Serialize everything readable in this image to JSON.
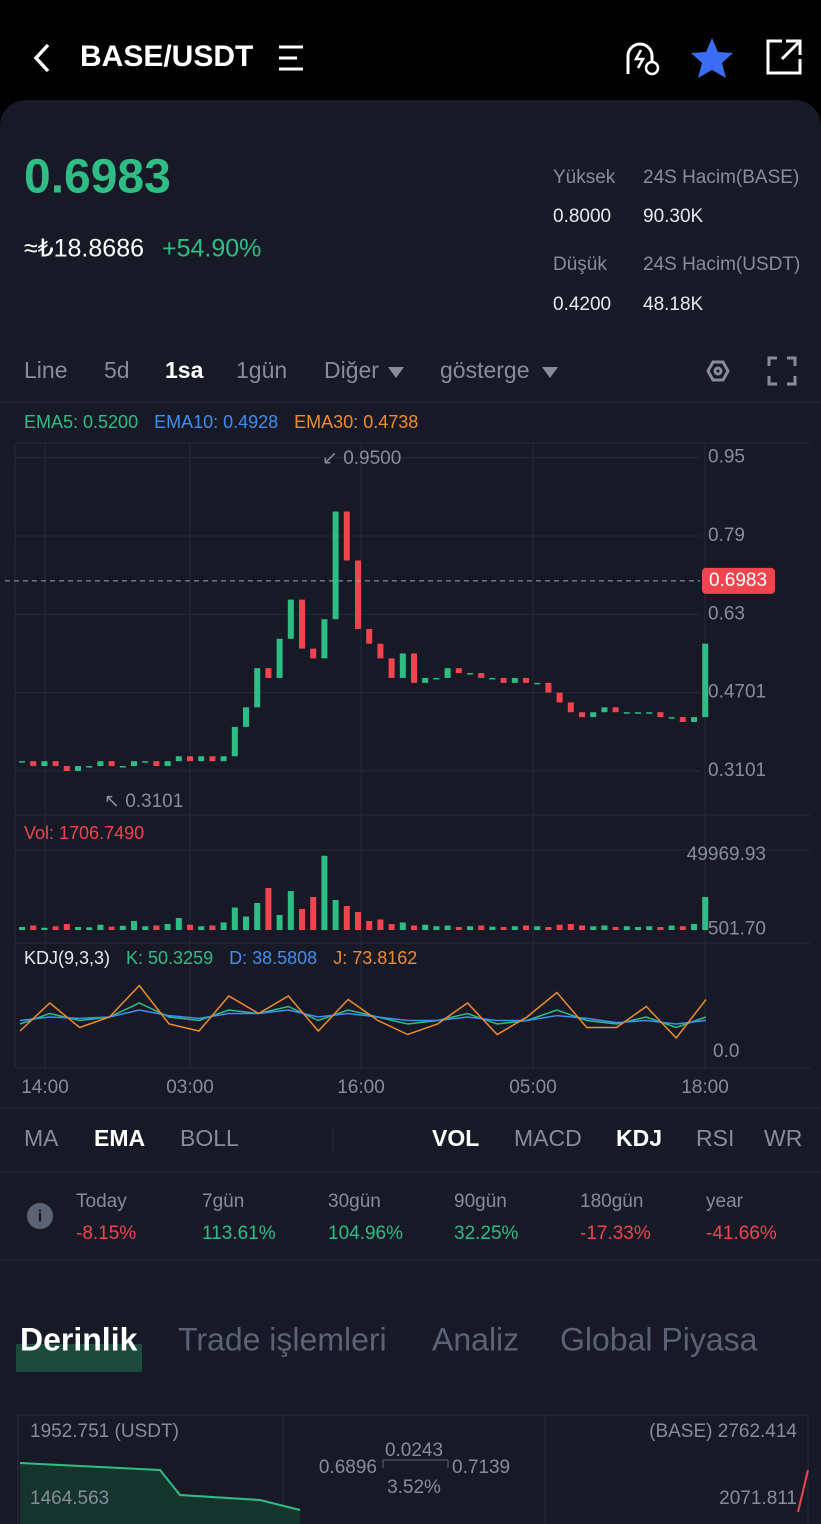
{
  "header": {
    "pair": "BASE/USDT"
  },
  "ticker": {
    "price": "0.6983",
    "fiat": "≈₺18.8686",
    "change": "+54.90%",
    "stats": [
      {
        "label": "Yüksek",
        "value": "0.8000"
      },
      {
        "label": "24S Hacim(BASE)",
        "value": "90.30K"
      },
      {
        "label": "Düşük",
        "value": "0.4200"
      },
      {
        "label": "24S Hacim(USDT)",
        "value": "48.18K"
      }
    ]
  },
  "intervals": [
    "Line",
    "5d",
    "1sa",
    "1gün",
    "Diğer",
    "gösterge"
  ],
  "chart_data": [
    {
      "type": "candlestick",
      "legend": [
        "EMA5: 0.5200",
        "EMA10: 0.4928",
        "EMA30: 0.4738"
      ],
      "legend_colors": [
        "#2ebd85",
        "#3d8ef0",
        "#f08a2c"
      ],
      "up_color": "#2ebd85",
      "down_color": "#f0444f",
      "open": 0.33,
      "closes": [
        0.33,
        0.32,
        0.33,
        0.32,
        0.31,
        0.32,
        0.32,
        0.33,
        0.32,
        0.32,
        0.33,
        0.33,
        0.32,
        0.33,
        0.34,
        0.33,
        0.34,
        0.33,
        0.34,
        0.4,
        0.44,
        0.52,
        0.5,
        0.58,
        0.66,
        0.56,
        0.54,
        0.62,
        0.84,
        0.74,
        0.6,
        0.57,
        0.54,
        0.5,
        0.55,
        0.49,
        0.5,
        0.5,
        0.52,
        0.51,
        0.51,
        0.5,
        0.5,
        0.49,
        0.5,
        0.49,
        0.49,
        0.47,
        0.45,
        0.43,
        0.42,
        0.43,
        0.44,
        0.43,
        0.43,
        0.43,
        0.43,
        0.42,
        0.42,
        0.41,
        0.42,
        0.57
      ],
      "ylim": [
        0.22,
        0.98
      ],
      "yticks": [
        0.95,
        0.79,
        0.63,
        0.4701,
        0.3101
      ],
      "last_price": 0.6983,
      "high_label": "↙ 0.9500",
      "low_label": "↖ 0.3101"
    },
    {
      "type": "bar",
      "legend": [
        "Vol: 1706.7490"
      ],
      "values": [
        2000,
        3000,
        1500,
        2500,
        4000,
        2000,
        1800,
        3500,
        2200,
        2800,
        6000,
        2500,
        3000,
        4000,
        8000,
        3500,
        2500,
        3000,
        5000,
        15000,
        9000,
        18000,
        28000,
        10000,
        26000,
        14000,
        22000,
        49500,
        20000,
        16000,
        12000,
        6000,
        7000,
        4000,
        5000,
        3000,
        3500,
        2500,
        3000,
        2000,
        2500,
        3000,
        2200,
        2000,
        2500,
        3000,
        2500,
        2000,
        3500,
        4000,
        3000,
        2500,
        3000,
        2000,
        2500,
        2000,
        2500,
        2000,
        3000,
        2500,
        4000,
        22000
      ],
      "ylim": [
        0,
        52000
      ],
      "yticks": [
        49969.93,
        {
          "value": 501.7,
          "label": "501.70"
        }
      ]
    },
    {
      "type": "line",
      "legend": [
        "KDJ(9,3,3)",
        "K: 50.3259",
        "D: 38.5808",
        "J: 73.8162"
      ],
      "legend_colors": [
        "#e6e8ee",
        "#2ebd85",
        "#3d8ef0",
        "#f08a2c"
      ],
      "series": [
        {
          "name": "K",
          "color": "#2ebd85",
          "values": [
            40,
            55,
            45,
            50,
            70,
            50,
            45,
            60,
            55,
            65,
            45,
            60,
            50,
            40,
            45,
            55,
            40,
            45,
            60,
            45,
            40,
            50,
            35,
            50
          ]
        },
        {
          "name": "D",
          "color": "#3d8ef0",
          "values": [
            45,
            50,
            48,
            50,
            60,
            52,
            48,
            55,
            55,
            60,
            50,
            55,
            50,
            45,
            45,
            50,
            45,
            45,
            52,
            48,
            42,
            45,
            40,
            45
          ]
        },
        {
          "name": "J",
          "color": "#f08a2c",
          "values": [
            30,
            70,
            35,
            50,
            95,
            40,
            30,
            80,
            55,
            80,
            30,
            75,
            45,
            25,
            40,
            70,
            25,
            50,
            85,
            35,
            35,
            65,
            20,
            75
          ]
        }
      ],
      "ylim": [
        0,
        100
      ],
      "yticks": [
        {
          "value": 0,
          "label": "0.0"
        }
      ]
    }
  ],
  "time_axis": [
    "14:00",
    "03:00",
    "16:00",
    "05:00",
    "18:00"
  ],
  "main_indicators": [
    "MA",
    "EMA",
    "BOLL"
  ],
  "sub_indicators": [
    "VOL",
    "MACD",
    "KDJ",
    "RSI",
    "WR"
  ],
  "performance": [
    {
      "label": "Today",
      "value": "-8.15%"
    },
    {
      "label": "7gün",
      "value": "113.61%"
    },
    {
      "label": "30gün",
      "value": "104.96%"
    },
    {
      "label": "90gün",
      "value": "32.25%"
    },
    {
      "label": "180gün",
      "value": "-17.33%"
    },
    {
      "label": "year",
      "value": "-41.66%"
    }
  ],
  "tabs": [
    "Derinlik",
    "Trade işlemleri",
    "Analiz",
    "Global Piyasa"
  ],
  "depth": {
    "left_top": "1952.751 (USDT)",
    "left_bottom": "1464.563",
    "right_top": "(BASE) 2762.414",
    "right_bottom": "2071.811",
    "spread": "0.0243",
    "bid": "0.6896",
    "ask": "0.7139",
    "spread_pct": "3.52%"
  }
}
